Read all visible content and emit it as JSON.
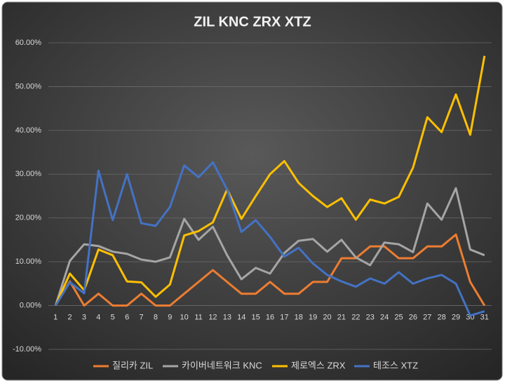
{
  "chart_data": {
    "type": "line",
    "title": "ZIL KNC ZRX XTZ",
    "categories": [
      "1",
      "2",
      "3",
      "4",
      "5",
      "6",
      "7",
      "8",
      "9",
      "10",
      "11",
      "12",
      "13",
      "14",
      "15",
      "16",
      "17",
      "18",
      "19",
      "20",
      "21",
      "22",
      "23",
      "24",
      "25",
      "26",
      "27",
      "28",
      "29",
      "30",
      "31"
    ],
    "ylim": [
      -10,
      60
    ],
    "yticks": [
      {
        "value": -10,
        "label": "-10.00%"
      },
      {
        "value": 0,
        "label": "0.00%"
      },
      {
        "value": 10,
        "label": "10.00%"
      },
      {
        "value": 20,
        "label": "20.00%"
      },
      {
        "value": 30,
        "label": "30.00%"
      },
      {
        "value": 40,
        "label": "40.00%"
      },
      {
        "value": 50,
        "label": "50.00%"
      },
      {
        "value": 60,
        "label": "60.00%"
      }
    ],
    "grid": true,
    "legend": "bottom",
    "series": [
      {
        "name": "질리카 ZIL",
        "color": "#ed7d31",
        "values": [
          0,
          5.5,
          0,
          2.7,
          0,
          0,
          2.7,
          0,
          0,
          2.7,
          5.4,
          8.1,
          5.4,
          2.7,
          2.7,
          5.4,
          2.7,
          2.7,
          5.4,
          5.4,
          10.8,
          10.8,
          13.5,
          13.5,
          10.8,
          10.8,
          13.5,
          13.5,
          16.2,
          5.4,
          0
        ]
      },
      {
        "name": "카이버네트워크 KNC",
        "color": "#a5a5a5",
        "values": [
          0,
          10.2,
          14,
          13.6,
          12.3,
          11.8,
          10.5,
          10,
          11,
          19.8,
          15,
          18,
          11.5,
          6,
          8.6,
          7.3,
          12,
          14.8,
          15.2,
          12.3,
          15,
          11,
          9.2,
          14.4,
          14,
          12.2,
          23.3,
          19.6,
          26.8,
          12.8,
          11.5
        ]
      },
      {
        "name": "제로엑스 ZRX",
        "color": "#ffc000",
        "values": [
          0,
          7.3,
          3.5,
          12.8,
          11.5,
          5.5,
          5.3,
          2,
          4.8,
          16,
          17,
          19,
          26.5,
          19.8,
          25,
          30,
          33,
          28,
          25,
          22.5,
          24.5,
          19.6,
          24.2,
          23.3,
          24.8,
          31.5,
          43,
          39.6,
          48.2,
          39,
          57
        ]
      },
      {
        "name": "테조스 XTZ",
        "color": "#4472c4",
        "values": [
          0,
          5.3,
          2.8,
          30.8,
          19.5,
          30,
          18.8,
          18.2,
          22.5,
          32,
          29.3,
          32.7,
          26.5,
          16.8,
          19.5,
          15.7,
          11.2,
          13.2,
          9.6,
          7,
          5.5,
          4.3,
          6.2,
          5,
          7.6,
          5,
          6.2,
          7,
          5,
          -2.3,
          -1.3
        ]
      }
    ]
  }
}
